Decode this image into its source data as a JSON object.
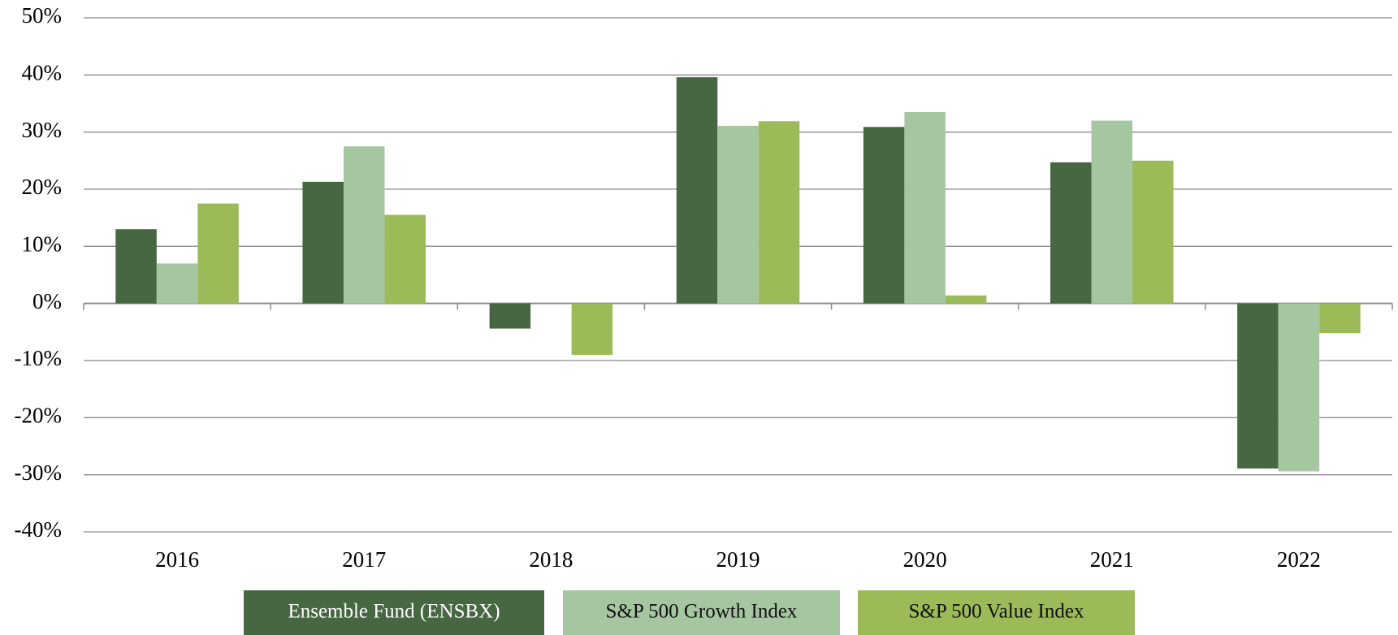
{
  "chart_data": {
    "type": "bar",
    "categories": [
      "2016",
      "2017",
      "2018",
      "2019",
      "2020",
      "2021",
      "2022"
    ],
    "series": [
      {
        "name": "Ensemble Fund (ENSBX)",
        "color": "#466741",
        "values": [
          13,
          21.3,
          -4.4,
          39.6,
          30.9,
          24.7,
          -28.9
        ]
      },
      {
        "name": "S&P 500 Growth Index",
        "color": "#a6c6a2",
        "values": [
          7,
          27.5,
          0,
          31.1,
          33.5,
          32.0,
          -29.4
        ]
      },
      {
        "name": "S&P 500 Value Index",
        "color": "#9bbb59",
        "values": [
          17.5,
          15.5,
          -9.0,
          31.9,
          1.4,
          25.0,
          -5.2
        ]
      }
    ],
    "ylim": [
      -40,
      50
    ],
    "yticks": [
      {
        "value": -40,
        "label": "-40%"
      },
      {
        "value": -30,
        "label": "-30%"
      },
      {
        "value": -20,
        "label": "-20%"
      },
      {
        "value": -10,
        "label": "-10%"
      },
      {
        "value": 0,
        "label": "0%"
      },
      {
        "value": 10,
        "label": "10%"
      },
      {
        "value": 20,
        "label": "20%"
      },
      {
        "value": 30,
        "label": "30%"
      },
      {
        "value": 40,
        "label": "40%"
      },
      {
        "value": 50,
        "label": "50%"
      }
    ],
    "grid": true,
    "legend": "bottom"
  }
}
